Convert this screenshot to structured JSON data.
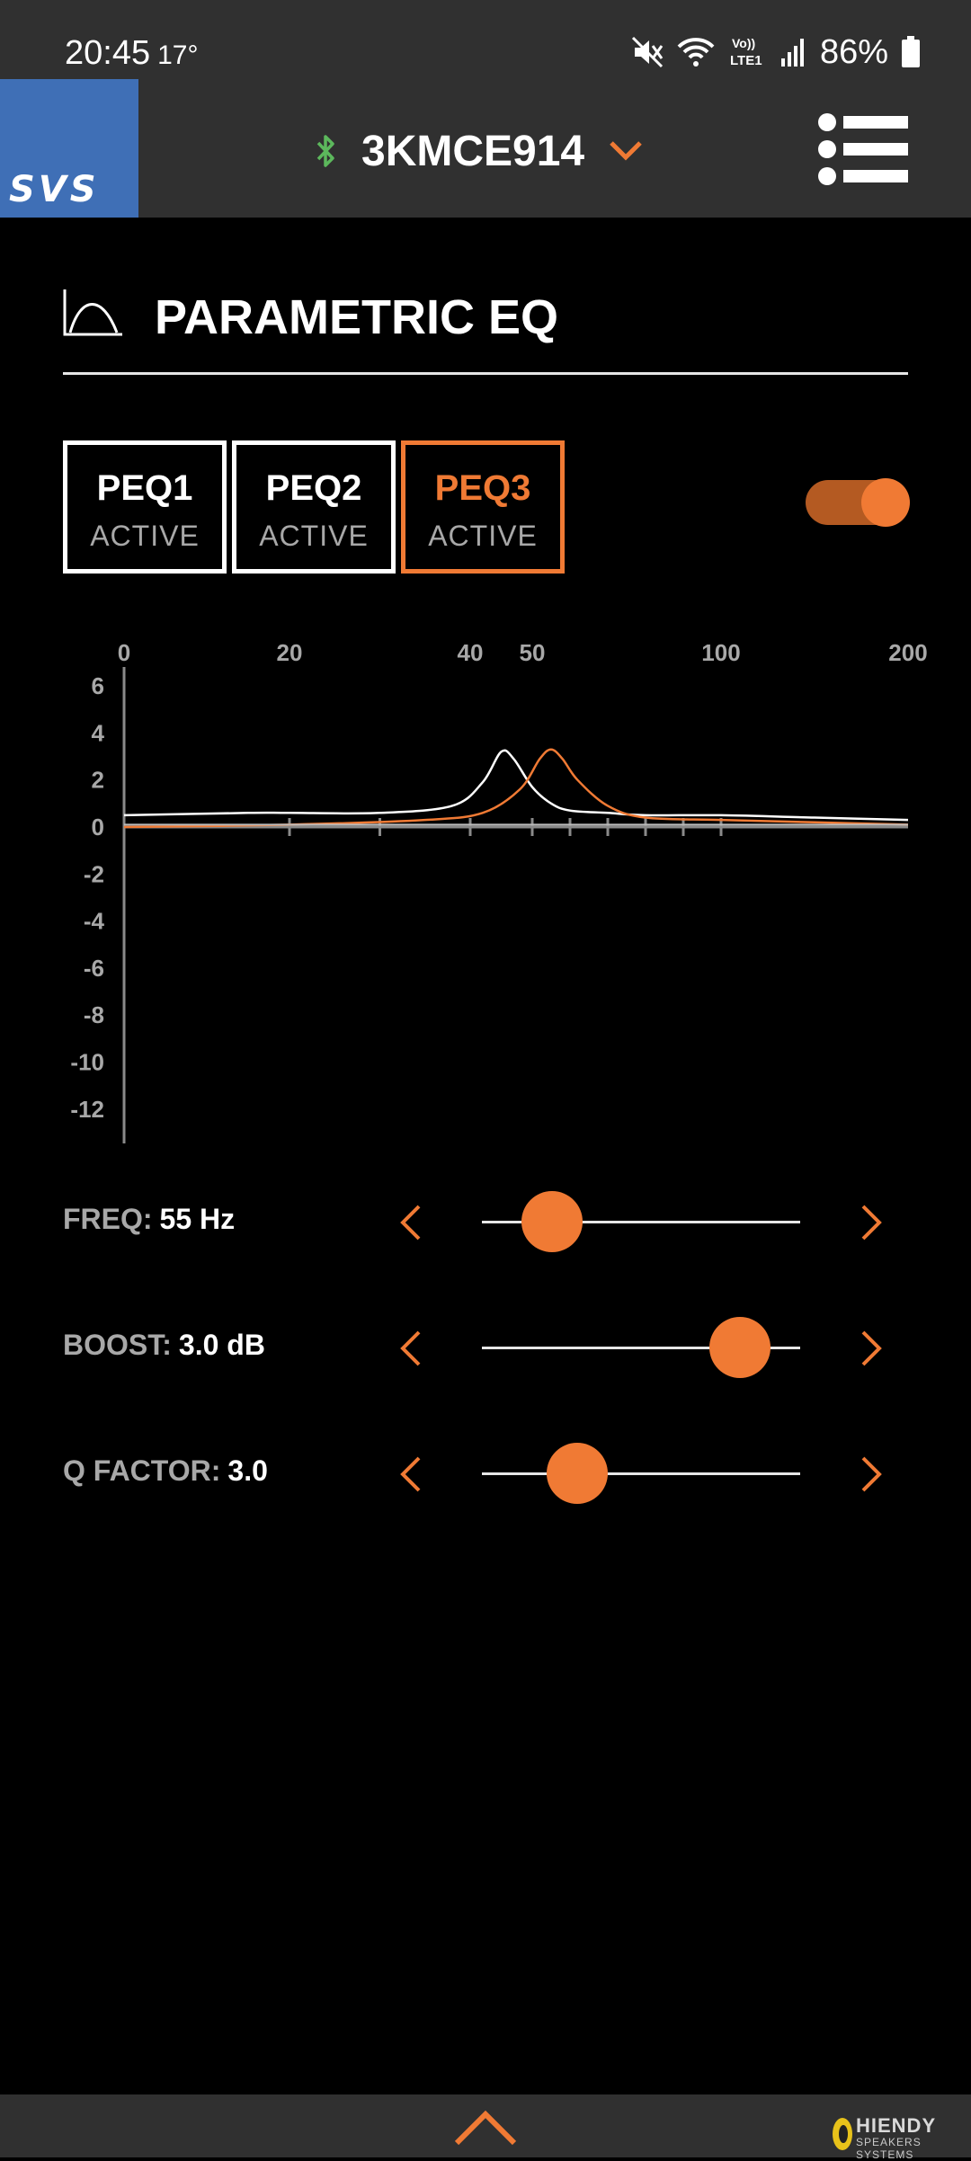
{
  "status_bar": {
    "time": "20:45",
    "temperature": "17°",
    "battery": "86%",
    "network_label": "LTE1",
    "volte_label": "Vo))"
  },
  "header": {
    "logo": "SVS",
    "device_name": "3KMCE914",
    "bluetooth_color": "#5cb85c",
    "accent_color": "#f07a34"
  },
  "section": {
    "title": "PARAMETRIC EQ"
  },
  "peq_tabs": [
    {
      "label": "PEQ1",
      "status": "ACTIVE",
      "selected": false
    },
    {
      "label": "PEQ2",
      "status": "ACTIVE",
      "selected": false
    },
    {
      "label": "PEQ3",
      "status": "ACTIVE",
      "selected": true
    }
  ],
  "peq_enabled": true,
  "chart_data": {
    "type": "line",
    "x_tick_labels": [
      "0",
      "20",
      "40",
      "50",
      "100",
      "200"
    ],
    "y_tick_labels": [
      "6",
      "4",
      "2",
      "0",
      "-2",
      "-4",
      "-6",
      "-8",
      "-10",
      "-12"
    ],
    "xlim": [
      0,
      200
    ],
    "ylim": [
      -13,
      6.5
    ],
    "series": [
      {
        "color": "#ffffff",
        "x": [
          0,
          15,
          20,
          30,
          38,
          42,
          45,
          47,
          50,
          55,
          60,
          70,
          80,
          100,
          150,
          200
        ],
        "y": [
          0.5,
          0.6,
          0.6,
          0.6,
          0.9,
          1.9,
          3.2,
          2.9,
          1.7,
          1.0,
          0.7,
          0.6,
          0.5,
          0.5,
          0.4,
          0.3
        ]
      },
      {
        "color": "#f07a34",
        "x": [
          0,
          20,
          35,
          42,
          48,
          52,
          55,
          58,
          62,
          70,
          80,
          100,
          150,
          200
        ],
        "y": [
          0.0,
          0.1,
          0.3,
          0.6,
          1.6,
          2.9,
          3.3,
          2.9,
          2.0,
          0.9,
          0.4,
          0.3,
          0.2,
          0.1
        ]
      },
      {
        "color": "#bbbbbb",
        "x": [
          0,
          100,
          200
        ],
        "y": [
          0.1,
          0.1,
          0.1
        ]
      }
    ]
  },
  "controls": [
    {
      "label": "FREQ:",
      "value": "55 Hz",
      "level": 0.22
    },
    {
      "label": "BOOST:",
      "value": "3.0 dB",
      "level": 0.81
    },
    {
      "label": "Q FACTOR:",
      "value": "3.0",
      "level": 0.3
    }
  ],
  "watermark": {
    "brand": "HIENDY",
    "tagline": "SPEAKERS SYSTEMS"
  }
}
